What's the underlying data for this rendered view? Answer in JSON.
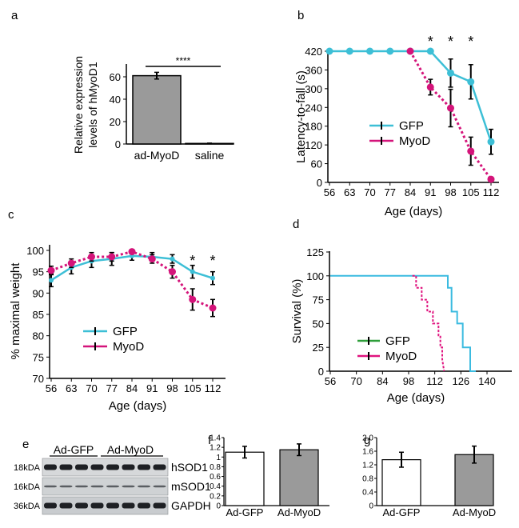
{
  "panel_labels": {
    "a": "a",
    "b": "b",
    "c": "c",
    "d": "d",
    "e": "e",
    "f": "f",
    "g": "g"
  },
  "colors": {
    "gfp": "#3dbfd6",
    "myod": "#d4147a",
    "gfp_survival": "#3bbbe0",
    "myod_survival": "#e0147f",
    "gfp_legend_d": "#2e9e3a",
    "bar_gray": "#9a9a9a",
    "bar_white": "#ffffff",
    "err": "#000000"
  },
  "chart_data": [
    {
      "panel": "a",
      "type": "bar",
      "categories": [
        "ad-MyoD",
        "saline"
      ],
      "values": [
        61,
        0.5
      ],
      "errors": [
        3,
        0.3
      ],
      "ylabel_line1": "Relative expression",
      "ylabel_line2": "levels of hMyoD1",
      "ylim": [
        0,
        70
      ],
      "yticks": [
        "0",
        "20",
        "40",
        "60"
      ],
      "significance": "****"
    },
    {
      "panel": "b",
      "type": "line",
      "ylabel": "Latency-to-fall (s)",
      "xlabel": "Age (days)",
      "x": [
        56,
        63,
        70,
        77,
        84,
        91,
        98,
        105,
        112
      ],
      "xticks": [
        "56",
        "63",
        "70",
        "77",
        "84",
        "91",
        "98",
        "105",
        "112"
      ],
      "yticks": [
        "0",
        "60",
        "120",
        "180",
        "240",
        "300",
        "360",
        "420"
      ],
      "ylim": [
        0,
        420
      ],
      "series": [
        {
          "name": "GFP",
          "x": [
            56,
            63,
            70,
            77,
            84,
            91,
            98,
            105,
            112
          ],
          "values": [
            420,
            420,
            420,
            420,
            420,
            420,
            350,
            322,
            130
          ],
          "errors": [
            0,
            0,
            0,
            0,
            0,
            0,
            45,
            55,
            40
          ]
        },
        {
          "name": "MyoD",
          "x": [
            84,
            91,
            98,
            105,
            112
          ],
          "values": [
            420,
            305,
            238,
            100,
            10
          ],
          "errors": [
            0,
            25,
            60,
            45,
            5
          ]
        }
      ],
      "stars": [
        {
          "x": 91,
          "label": "*"
        },
        {
          "x": 98,
          "label": "*"
        },
        {
          "x": 105,
          "label": "*"
        }
      ],
      "legend": [
        "GFP",
        "MyoD"
      ]
    },
    {
      "panel": "c",
      "type": "line",
      "ylabel": "% maximal weight",
      "xlabel": "Age (days)",
      "x": [
        56,
        63,
        70,
        77,
        84,
        91,
        98,
        105,
        112
      ],
      "xticks": [
        "56",
        "63",
        "70",
        "77",
        "84",
        "91",
        "98",
        "105",
        "112"
      ],
      "yticks": [
        "70",
        "75",
        "80",
        "85",
        "90",
        "95",
        "100"
      ],
      "ylim": [
        70,
        100
      ],
      "series": [
        {
          "name": "GFP",
          "values": [
            93,
            96,
            97.5,
            98,
            98.7,
            98.5,
            98,
            95,
            93.5
          ],
          "errors": [
            1.5,
            1.5,
            1.5,
            1.5,
            1,
            1,
            1,
            1.5,
            1.5
          ]
        },
        {
          "name": "MyoD",
          "values": [
            95.3,
            97,
            98.5,
            98.5,
            99.7,
            98,
            95,
            88.5,
            86.5
          ],
          "errors": [
            1,
            1,
            1,
            1,
            0.5,
            1,
            1.5,
            2.5,
            2
          ]
        }
      ],
      "stars": [
        {
          "x": 105,
          "label": "*"
        },
        {
          "x": 112,
          "label": "*"
        }
      ],
      "legend": [
        "GFP",
        "MyoD"
      ]
    },
    {
      "panel": "d",
      "type": "line",
      "ylabel": "Survival (%)",
      "xlabel": "Age (days)",
      "xticks": [
        "56",
        "70",
        "84",
        "98",
        "112",
        "126",
        "140"
      ],
      "yticks": [
        "0",
        "25",
        "50",
        "75",
        "100",
        "125"
      ],
      "xlim": [
        56,
        147
      ],
      "ylim": [
        0,
        125
      ],
      "series": [
        {
          "name": "GFP",
          "x": [
            56,
            119,
            119,
            121,
            121,
            124,
            124,
            127,
            127,
            131,
            131,
            134
          ],
          "values": [
            100,
            100,
            87.5,
            87.5,
            62.5,
            62.5,
            50,
            50,
            25,
            25,
            0,
            0
          ]
        },
        {
          "name": "MyoD",
          "x": [
            100,
            102,
            102,
            105,
            105,
            108,
            108,
            111,
            111,
            114,
            114,
            115,
            115,
            116,
            116,
            117
          ],
          "values": [
            100,
            100,
            87.5,
            87.5,
            75,
            75,
            62.5,
            62.5,
            50,
            50,
            37.5,
            37.5,
            25,
            25,
            12.5,
            0
          ]
        }
      ],
      "legend": [
        "GFP",
        "MyoD"
      ]
    },
    {
      "panel": "e",
      "type": "table",
      "group_labels": [
        "Ad-GFP",
        "Ad-MyoD"
      ],
      "rows": [
        {
          "size": "18kDA",
          "protein": "hSOD1"
        },
        {
          "size": "16kDA",
          "protein": "mSOD1"
        },
        {
          "size": "36kDA",
          "protein": "GAPDH"
        }
      ]
    },
    {
      "panel": "f",
      "type": "bar",
      "categories": [
        "Ad-GFP",
        "Ad-MyoD"
      ],
      "values": [
        1.1,
        1.15
      ],
      "errors": [
        0.12,
        0.12
      ],
      "ylim": [
        0,
        1.4
      ],
      "yticks": [
        "0",
        "0.2",
        "0.4",
        "0.6",
        "0.8",
        "1",
        "1.2",
        "1.4"
      ]
    },
    {
      "panel": "g",
      "type": "bar",
      "categories": [
        "Ad-GFP",
        "Ad-MyoD"
      ],
      "values": [
        1.35,
        1.5
      ],
      "errors": [
        0.22,
        0.25
      ],
      "ylim": [
        0,
        2.0
      ],
      "yticks": [
        "0",
        "0.4",
        "0.8",
        "1.2",
        "1.6",
        "2.0"
      ]
    }
  ]
}
